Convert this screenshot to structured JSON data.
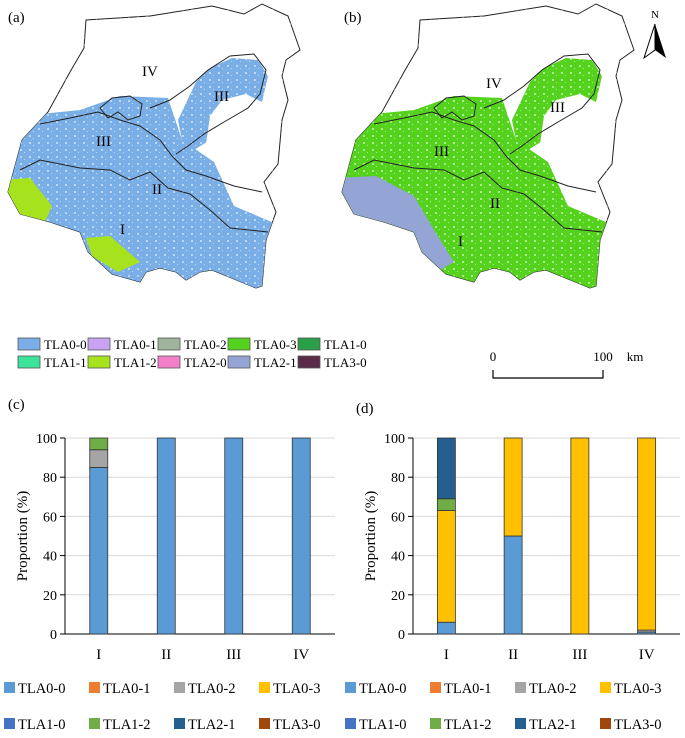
{
  "panels": {
    "a": {
      "label": "(a)",
      "regions": [
        "IV",
        "III",
        "III",
        "II",
        "I"
      ]
    },
    "b": {
      "label": "(b)",
      "regions": [
        "IV",
        "III",
        "III",
        "II",
        "I"
      ],
      "north": "N"
    },
    "c": {
      "label": "(c)"
    },
    "d": {
      "label": "(d)"
    }
  },
  "map_legend": {
    "items": [
      {
        "name": "TLA0-0",
        "color": "#7aaee6"
      },
      {
        "name": "TLA0-1",
        "color": "#c9a3f2"
      },
      {
        "name": "TLA0-2",
        "color": "#9fb49a"
      },
      {
        "name": "TLA0-3",
        "color": "#55d21e"
      },
      {
        "name": "TLA1-0",
        "color": "#2b9e48"
      },
      {
        "name": "TLA1-1",
        "color": "#3ee39a"
      },
      {
        "name": "TLA1-2",
        "color": "#a6e21d"
      },
      {
        "name": "TLA2-0",
        "color": "#f27fc8"
      },
      {
        "name": "TLA2-1",
        "color": "#94a4d4"
      },
      {
        "name": "TLA3-0",
        "color": "#5b2a48"
      }
    ]
  },
  "scale_bar": {
    "start": "0",
    "end": "100",
    "unit": "km"
  },
  "colors": {
    "map_a_fill": "#7aaee6",
    "map_a_accent": "#a6e21d",
    "map_b_fill": "#55d21e",
    "map_b_accent": "#94a4d4",
    "boundary": "#222222"
  },
  "bar_legend": {
    "items": [
      {
        "name": "TLA0-0",
        "color": "#5b9bd5"
      },
      {
        "name": "TLA0-1",
        "color": "#ed7d31"
      },
      {
        "name": "TLA0-2",
        "color": "#a5a5a5"
      },
      {
        "name": "TLA0-3",
        "color": "#ffc000"
      },
      {
        "name": "TLA1-0",
        "color": "#4472c4"
      },
      {
        "name": "TLA1-2",
        "color": "#70ad47"
      },
      {
        "name": "TLA2-1",
        "color": "#255e91"
      },
      {
        "name": "TLA3-0",
        "color": "#9e480e"
      }
    ]
  },
  "chart_data": [
    {
      "panel": "(c)",
      "type": "bar",
      "stacked": true,
      "categories": [
        "I",
        "II",
        "III",
        "IV"
      ],
      "xlabel": "",
      "ylabel": "Proportion (%)",
      "ylim": [
        0,
        100
      ],
      "yticks": [
        0,
        20,
        40,
        60,
        80,
        100
      ],
      "series": [
        {
          "name": "TLA0-0",
          "values": [
            85,
            100,
            100,
            100
          ]
        },
        {
          "name": "TLA0-1",
          "values": [
            0,
            0,
            0,
            0
          ]
        },
        {
          "name": "TLA0-2",
          "values": [
            9,
            0,
            0,
            0
          ]
        },
        {
          "name": "TLA0-3",
          "values": [
            0,
            0,
            0,
            0
          ]
        },
        {
          "name": "TLA1-0",
          "values": [
            0,
            0,
            0,
            0
          ]
        },
        {
          "name": "TLA1-2",
          "values": [
            6,
            0,
            0,
            0
          ]
        },
        {
          "name": "TLA2-1",
          "values": [
            0,
            0,
            0,
            0
          ]
        },
        {
          "name": "TLA3-0",
          "values": [
            0,
            0,
            0,
            0
          ]
        }
      ]
    },
    {
      "panel": "(d)",
      "type": "bar",
      "stacked": true,
      "categories": [
        "I",
        "II",
        "III",
        "IV"
      ],
      "xlabel": "",
      "ylabel": "Proportion (%)",
      "ylim": [
        0,
        100
      ],
      "yticks": [
        0,
        20,
        40,
        60,
        80,
        100
      ],
      "series": [
        {
          "name": "TLA0-0",
          "values": [
            6,
            50,
            0,
            1
          ]
        },
        {
          "name": "TLA0-1",
          "values": [
            0,
            0,
            0,
            0
          ]
        },
        {
          "name": "TLA0-2",
          "values": [
            0,
            0,
            0,
            1
          ]
        },
        {
          "name": "TLA0-3",
          "values": [
            57,
            50,
            100,
            98
          ]
        },
        {
          "name": "TLA1-0",
          "values": [
            0,
            0,
            0,
            0
          ]
        },
        {
          "name": "TLA1-2",
          "values": [
            6,
            0,
            0,
            0
          ]
        },
        {
          "name": "TLA2-1",
          "values": [
            31,
            0,
            0,
            0
          ]
        },
        {
          "name": "TLA3-0",
          "values": [
            0,
            0,
            0,
            0
          ]
        }
      ]
    }
  ]
}
